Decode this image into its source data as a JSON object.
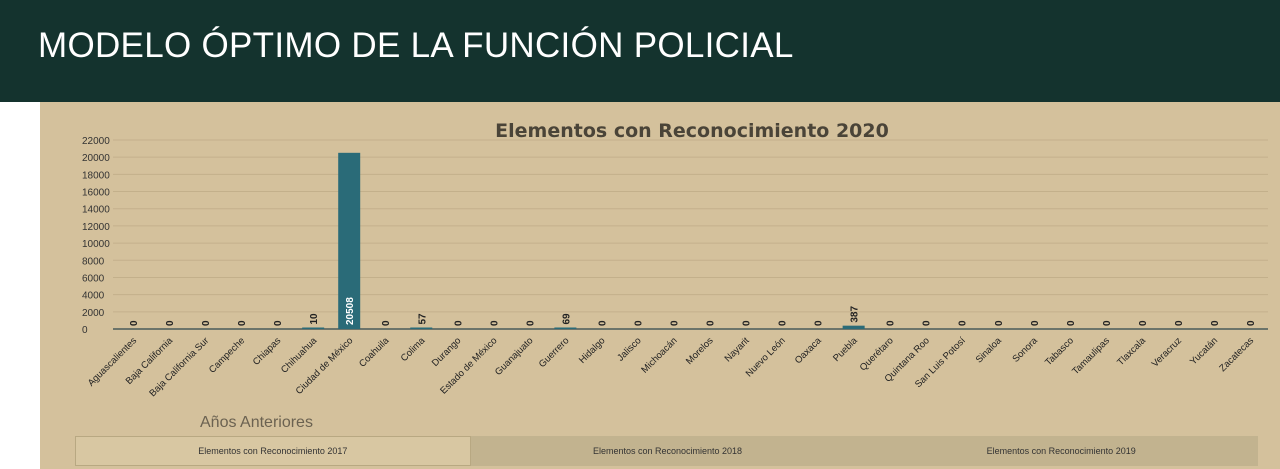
{
  "header": {
    "title": "MODELO ÓPTIMO DE LA FUNCIÓN POLICIAL"
  },
  "previous_years": {
    "heading": "Años Anteriores",
    "tabs": [
      {
        "label": "Elementos con Reconocimiento 2017",
        "active": true
      },
      {
        "label": "Elementos con Reconocimiento 2018",
        "active": false
      },
      {
        "label": "Elementos con Reconocimiento 2019",
        "active": false
      }
    ]
  },
  "colors": {
    "header_bg": "#14332e",
    "panel_bg": "#d4c19c",
    "bar": "#2a6b78"
  },
  "chart_data": {
    "type": "bar",
    "title": "Elementos con Reconocimiento 2020",
    "xlabel": "",
    "ylabel": "",
    "ylim": [
      0,
      22000
    ],
    "yticks": [
      0,
      2000,
      4000,
      6000,
      8000,
      10000,
      12000,
      14000,
      16000,
      18000,
      20000,
      22000
    ],
    "grid": true,
    "categories": [
      "Aguascalientes",
      "Baja California",
      "Baja California Sur",
      "Campeche",
      "Chiapas",
      "Chihuahua",
      "Ciudad de México",
      "Coahuila",
      "Colima",
      "Durango",
      "Estado de México",
      "Guanajuato",
      "Guerrero",
      "Hidalgo",
      "Jalisco",
      "Michoacán",
      "Morelos",
      "Nayarit",
      "Nuevo León",
      "Oaxaca",
      "Puebla",
      "Querétaro",
      "Quintana Roo",
      "San Luis Potosí",
      "Sinaloa",
      "Sonora",
      "Tabasco",
      "Tamaulipas",
      "Tlaxcala",
      "Veracruz",
      "Yucatán",
      "Zacatecas"
    ],
    "values": [
      0,
      0,
      0,
      0,
      0,
      10,
      20508,
      0,
      57,
      0,
      0,
      0,
      69,
      0,
      0,
      0,
      0,
      0,
      0,
      0,
      387,
      0,
      0,
      0,
      0,
      0,
      0,
      0,
      0,
      0,
      0,
      0
    ]
  }
}
